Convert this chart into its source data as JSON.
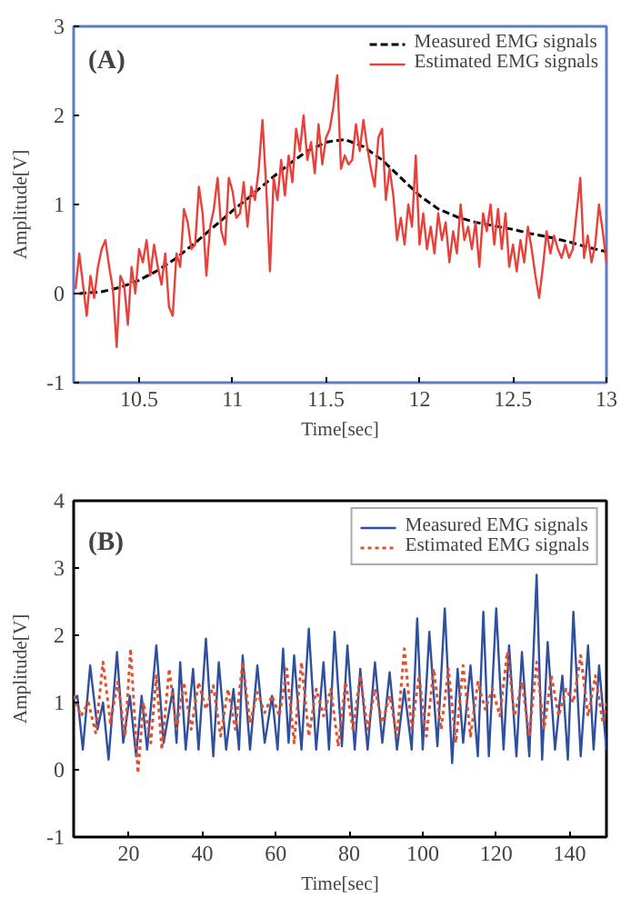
{
  "chart_data": [
    {
      "type": "line",
      "xlabel": "Time[sec]",
      "ylabel": "Amplitude[V]",
      "annotations": [
        "(A)"
      ],
      "xlim": [
        10.15,
        13
      ],
      "ylim": [
        -1,
        3
      ],
      "xticks": [
        10.5,
        11,
        11.5,
        12,
        12.5,
        13
      ],
      "yticks": [
        -1,
        0,
        1,
        2,
        3
      ],
      "grid": false,
      "legend": "top right",
      "series": [
        {
          "name": "Measured EMG signals",
          "color": "#000000",
          "line_style": "dashed",
          "x": [
            10.18,
            10.3,
            10.4,
            10.5,
            10.6,
            10.7,
            10.8,
            10.9,
            11.0,
            11.1,
            11.2,
            11.3,
            11.4,
            11.5,
            11.6,
            11.7,
            11.8,
            11.9,
            12.0,
            12.1,
            12.2,
            12.3,
            12.4,
            12.5,
            12.6,
            12.7,
            12.8,
            12.9,
            13.0
          ],
          "values": [
            0.0,
            0.02,
            0.07,
            0.15,
            0.26,
            0.4,
            0.57,
            0.75,
            0.93,
            1.1,
            1.28,
            1.45,
            1.6,
            1.7,
            1.73,
            1.65,
            1.5,
            1.3,
            1.1,
            0.95,
            0.86,
            0.8,
            0.76,
            0.72,
            0.67,
            0.63,
            0.58,
            0.52,
            0.47
          ]
        },
        {
          "name": "Estimated EMG signals",
          "color": "#e8403a",
          "line_style": "solid",
          "x": [
            10.16,
            10.18,
            10.2,
            10.22,
            10.24,
            10.26,
            10.28,
            10.3,
            10.32,
            10.34,
            10.36,
            10.38,
            10.4,
            10.42,
            10.44,
            10.46,
            10.48,
            10.5,
            10.52,
            10.54,
            10.56,
            10.58,
            10.6,
            10.62,
            10.64,
            10.66,
            10.68,
            10.7,
            10.72,
            10.74,
            10.76,
            10.78,
            10.8,
            10.82,
            10.84,
            10.86,
            10.88,
            10.9,
            10.92,
            10.94,
            10.96,
            10.98,
            11.0,
            11.02,
            11.04,
            11.06,
            11.08,
            11.1,
            11.12,
            11.14,
            11.16,
            11.18,
            11.2,
            11.22,
            11.24,
            11.26,
            11.28,
            11.3,
            11.32,
            11.34,
            11.36,
            11.38,
            11.4,
            11.42,
            11.44,
            11.46,
            11.48,
            11.5,
            11.52,
            11.54,
            11.56,
            11.58,
            11.6,
            11.62,
            11.64,
            11.66,
            11.68,
            11.7,
            11.72,
            11.74,
            11.76,
            11.78,
            11.8,
            11.82,
            11.84,
            11.86,
            11.88,
            11.9,
            11.92,
            11.94,
            11.96,
            11.98,
            12.0,
            12.02,
            12.04,
            12.06,
            12.08,
            12.1,
            12.12,
            12.14,
            12.16,
            12.18,
            12.2,
            12.22,
            12.24,
            12.26,
            12.28,
            12.3,
            12.32,
            12.34,
            12.36,
            12.38,
            12.4,
            12.42,
            12.44,
            12.46,
            12.48,
            12.5,
            12.52,
            12.54,
            12.56,
            12.58,
            12.6,
            12.62,
            12.64,
            12.66,
            12.68,
            12.7,
            12.72,
            12.74,
            12.76,
            12.78,
            12.8,
            12.82,
            12.84,
            12.86,
            12.88,
            12.9,
            12.92,
            12.94,
            12.96,
            12.98,
            13.0
          ],
          "values": [
            0.05,
            0.45,
            0.1,
            -0.25,
            0.2,
            -0.05,
            0.3,
            0.5,
            0.6,
            0.3,
            0.05,
            -0.6,
            0.2,
            0.1,
            -0.35,
            0.3,
            0.0,
            0.5,
            0.35,
            0.6,
            0.2,
            0.55,
            0.3,
            0.1,
            0.45,
            -0.15,
            -0.25,
            0.45,
            0.3,
            0.95,
            0.8,
            0.5,
            0.55,
            1.2,
            0.9,
            0.2,
            0.75,
            0.95,
            1.3,
            0.7,
            0.55,
            1.3,
            1.15,
            0.85,
            0.9,
            1.25,
            0.75,
            1.2,
            1.05,
            1.4,
            1.95,
            1.2,
            0.25,
            1.3,
            1.05,
            1.5,
            1.1,
            1.55,
            1.25,
            1.85,
            1.6,
            2.0,
            1.5,
            1.7,
            1.35,
            1.9,
            1.45,
            1.75,
            1.85,
            2.1,
            2.45,
            1.4,
            1.55,
            1.45,
            1.5,
            1.9,
            1.6,
            1.95,
            1.65,
            1.4,
            1.2,
            1.75,
            1.85,
            1.05,
            1.4,
            1.1,
            0.6,
            0.85,
            0.55,
            1.0,
            0.75,
            1.55,
            0.55,
            0.9,
            0.5,
            0.75,
            0.45,
            0.9,
            0.6,
            0.8,
            0.35,
            0.7,
            0.45,
            1.0,
            0.6,
            0.75,
            0.5,
            0.8,
            0.3,
            0.9,
            0.7,
            1.0,
            0.55,
            0.95,
            0.5,
            0.9,
            0.3,
            0.55,
            0.25,
            0.6,
            0.35,
            0.75,
            0.5,
            0.2,
            -0.05,
            0.3,
            0.7,
            0.45,
            0.65,
            0.5,
            0.4,
            0.55,
            0.4,
            0.5,
            0.9,
            1.3,
            0.4,
            0.65,
            0.35,
            0.55,
            1.0,
            0.7,
            0.35
          ]
        }
      ]
    },
    {
      "type": "line",
      "xlabel": "Time[sec]",
      "ylabel": "Amplitude[V]",
      "annotations": [
        "(B)"
      ],
      "xlim": [
        5,
        150
      ],
      "ylim": [
        -1,
        4
      ],
      "xticks": [
        20,
        40,
        60,
        80,
        100,
        120,
        140
      ],
      "yticks": [
        -1,
        0,
        1,
        2,
        3,
        4
      ],
      "grid": false,
      "legend": "top right",
      "series": [
        {
          "name": "Measured EMG signals",
          "color": "#2f4f9f",
          "line_style": "solid",
          "x": [
            5,
            6,
            7.5,
            9.5,
            11.5,
            13,
            14.5,
            16.8,
            18.5,
            20.3,
            22,
            23.5,
            25,
            27.5,
            29.5,
            32,
            33,
            34,
            35.5,
            37.5,
            39,
            41,
            43,
            44.5,
            46.5,
            48.5,
            50,
            51,
            53,
            55,
            57,
            59,
            60.5,
            62,
            63.5,
            65,
            67,
            69,
            71,
            73,
            74.5,
            76,
            78,
            79.5,
            81.5,
            83,
            85,
            87,
            89,
            91,
            93,
            95,
            97,
            98.5,
            100,
            101.8,
            104,
            106,
            108,
            109.5,
            111,
            113,
            115,
            116.5,
            118,
            120,
            122,
            123.5,
            125.5,
            127,
            129,
            131,
            132.5,
            134,
            136,
            138,
            139.5,
            141,
            143,
            145,
            146.5,
            148,
            150
          ],
          "values": [
            1.05,
            1.1,
            0.3,
            1.55,
            0.6,
            1.0,
            0.15,
            1.75,
            0.4,
            1.1,
            0.2,
            1.1,
            0.3,
            1.85,
            0.4,
            1.2,
            0.4,
            1.6,
            0.3,
            1.5,
            0.3,
            1.95,
            0.2,
            1.6,
            0.3,
            1.2,
            0.3,
            1.7,
            0.3,
            1.55,
            0.4,
            1.1,
            0.3,
            1.8,
            0.4,
            1.7,
            0.3,
            2.1,
            0.3,
            1.6,
            0.3,
            2.05,
            0.35,
            1.85,
            0.3,
            1.5,
            0.3,
            1.6,
            0.4,
            1.45,
            0.3,
            1.2,
            0.3,
            2.25,
            0.3,
            2.05,
            0.35,
            2.4,
            0.1,
            1.5,
            0.4,
            1.55,
            0.2,
            2.35,
            0.2,
            2.4,
            0.3,
            1.85,
            0.2,
            1.75,
            0.2,
            2.9,
            0.15,
            1.9,
            0.3,
            1.4,
            0.15,
            2.35,
            0.2,
            1.85,
            0.3,
            1.55,
            0.3
          ]
        },
        {
          "name": "Estimated EMG signals",
          "color": "#e0502e",
          "line_style": "dotted",
          "x": [
            5,
            7,
            9,
            11,
            13,
            15,
            17,
            19,
            20.5,
            22.5,
            24,
            26,
            27.5,
            29,
            31,
            33,
            35,
            37,
            39,
            41,
            43,
            45,
            47,
            49,
            51,
            53,
            55,
            57,
            59,
            61,
            63,
            65,
            67,
            69,
            71,
            73,
            75,
            77,
            79,
            81,
            83,
            85,
            87,
            89,
            91,
            93,
            95,
            97,
            99,
            101,
            103,
            105,
            107,
            109,
            111,
            113,
            115,
            117,
            119,
            121,
            123,
            125,
            127,
            129,
            131,
            133,
            135,
            137,
            139,
            141,
            143,
            145,
            147,
            149,
            150
          ],
          "values": [
            1.1,
            0.8,
            1.0,
            0.55,
            1.6,
            0.7,
            1.3,
            0.5,
            1.8,
            -0.05,
            1.0,
            0.4,
            1.4,
            0.3,
            1.5,
            0.6,
            1.3,
            0.6,
            1.3,
            0.9,
            1.25,
            0.5,
            1.2,
            0.6,
            1.6,
            0.7,
            1.15,
            0.85,
            1.1,
            0.8,
            1.5,
            0.4,
            1.6,
            0.5,
            1.2,
            0.8,
            1.2,
            0.35,
            1.3,
            0.6,
            1.4,
            0.6,
            1.2,
            0.7,
            1.1,
            0.5,
            1.8,
            0.6,
            1.4,
            0.5,
            1.5,
            0.6,
            1.5,
            0.4,
            1.55,
            0.5,
            1.3,
            0.9,
            1.2,
            0.8,
            1.75,
            0.8,
            1.3,
            0.5,
            1.6,
            0.6,
            1.4,
            0.8,
            1.2,
            1.0,
            1.7,
            0.8,
            1.4,
            0.7,
            1.0
          ]
        }
      ]
    }
  ]
}
